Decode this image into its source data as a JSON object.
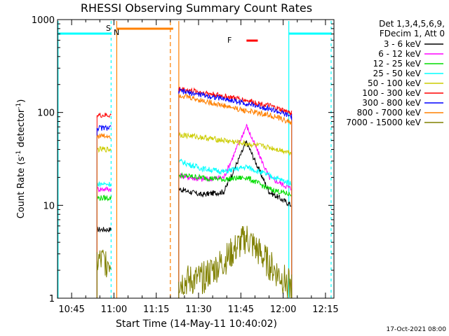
{
  "chart_data": {
    "type": "line",
    "title": "RHESSI Observing Summary Count Rates",
    "xlabel": "Start Time (14-May-11 10:40:02)",
    "ylabel_parts": [
      "Count Rate (s",
      "-1",
      " detector",
      "-1",
      ")"
    ],
    "y_scale": "log",
    "ylim": [
      1,
      1000
    ],
    "xlim": [
      "10:40",
      "12:18"
    ],
    "x_ticks": [
      "10:45",
      "11:00",
      "11:15",
      "11:30",
      "11:45",
      "12:00",
      "12:15"
    ],
    "y_ticks": [
      "1",
      "10",
      "100",
      "1000"
    ],
    "legend_header": [
      "Det 1,3,4,5,6,9,",
      "FDecim 1, Att 0"
    ],
    "legend_position": "right",
    "series": [
      {
        "name": "3 - 6 keV",
        "color": "#000000",
        "seg1": 5.5,
        "seg2": [
          15,
          13,
          14,
          48,
          14,
          10
        ]
      },
      {
        "name": "6 - 12 keV",
        "color": "#ff00ff",
        "seg1": 15,
        "seg2": [
          21,
          19,
          20,
          72,
          20,
          15
        ]
      },
      {
        "name": "12 - 25 keV",
        "color": "#00dd00",
        "seg1": 12,
        "seg2": [
          21,
          20,
          19,
          20,
          15,
          13
        ]
      },
      {
        "name": "25 - 50 keV",
        "color": "#00ffff",
        "seg1": 17,
        "seg2": [
          30,
          25,
          23,
          26,
          21,
          17
        ]
      },
      {
        "name": "50 - 100 keV",
        "color": "#cccc00",
        "seg1": 40,
        "seg2": [
          58,
          54,
          50,
          46,
          42,
          37
        ]
      },
      {
        "name": "100 - 300 keV",
        "color": "#ff0000",
        "seg1": 93,
        "seg2": [
          180,
          165,
          150,
          135,
          118,
          98
        ]
      },
      {
        "name": "300 - 800 keV",
        "color": "#0000ff",
        "seg1": 68,
        "seg2": [
          170,
          155,
          140,
          125,
          110,
          90
        ]
      },
      {
        "name": "800 - 7000 keV",
        "color": "#ff8000",
        "seg1": 56,
        "seg2": [
          155,
          135,
          118,
          104,
          94,
          78
        ]
      },
      {
        "name": "7000 - 15000 keV",
        "color": "#808000",
        "seg1": 2.5,
        "seg2": [
          1.5,
          1.6,
          2.5,
          4.5,
          2.3,
          1.3
        ]
      }
    ],
    "segment_times": {
      "seg1": [
        "10:54",
        "10:59"
      ],
      "seg2": [
        "11:23",
        "12:03"
      ]
    },
    "flags": [
      {
        "label": "S",
        "color": "#ff8000",
        "time": "10:59"
      },
      {
        "label": "N",
        "color": "#00aaaa",
        "time": "11:00"
      },
      {
        "label": "F",
        "color": "#ff0000",
        "time": "11:46"
      }
    ],
    "timestamp": "17-Oct-2021 08:00"
  }
}
